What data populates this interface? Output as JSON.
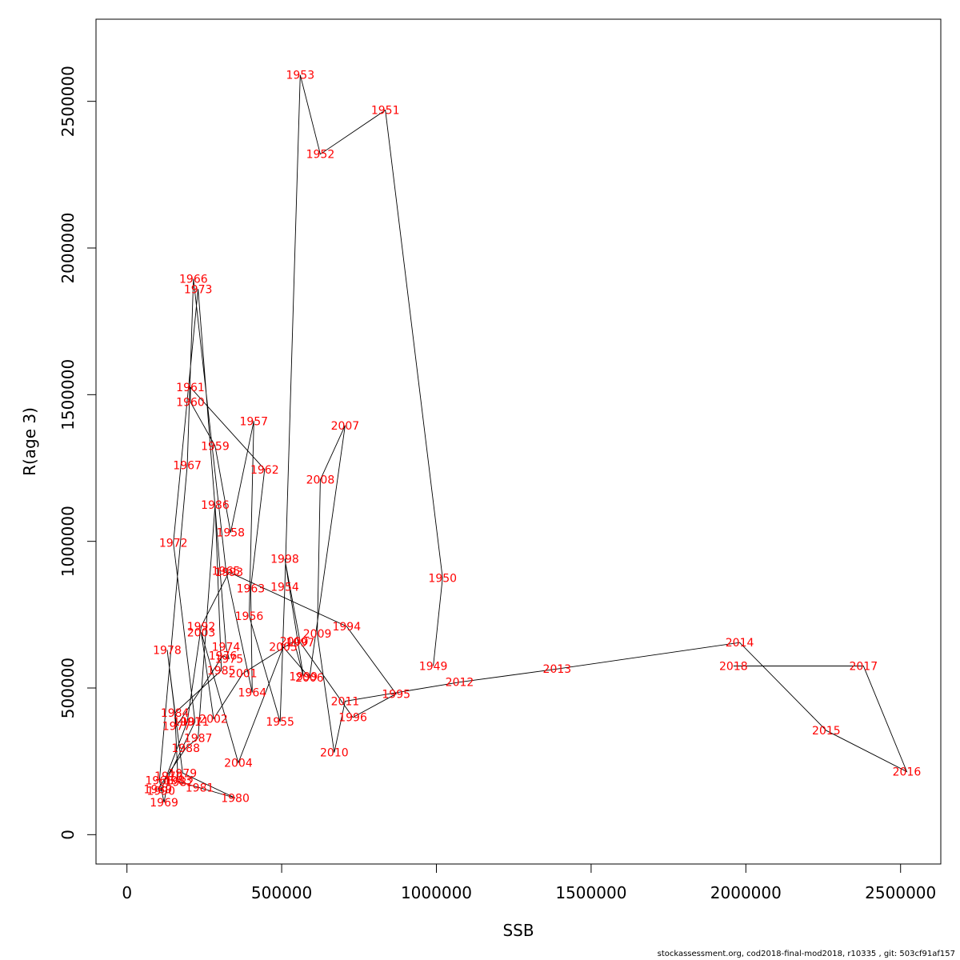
{
  "chart_data": {
    "type": "line",
    "xlabel": "SSB",
    "ylabel": "R(age 3)",
    "xlim": [
      -100000,
      2630000
    ],
    "ylim": [
      -100000,
      2780000
    ],
    "xticks": [
      0,
      500000,
      1000000,
      1500000,
      2000000,
      2500000
    ],
    "xtick_labels": [
      "0",
      "500000",
      "1000000",
      "1500000",
      "2000000",
      "2500000"
    ],
    "yticks": [
      0,
      500000,
      1000000,
      1500000,
      2000000,
      2500000
    ],
    "ytick_labels": [
      "0",
      "500000",
      "1000000",
      "1500000",
      "2000000",
      "2500000"
    ],
    "line_color": "#000000",
    "label_color": "#ff0000",
    "points": [
      {
        "label": "1949",
        "x": 990000,
        "y": 575000
      },
      {
        "label": "1950",
        "x": 1020000,
        "y": 875000
      },
      {
        "label": "1951",
        "x": 835000,
        "y": 2470000
      },
      {
        "label": "1952",
        "x": 625000,
        "y": 2320000
      },
      {
        "label": "1953",
        "x": 560000,
        "y": 2590000
      },
      {
        "label": "1954",
        "x": 510000,
        "y": 845000
      },
      {
        "label": "1955",
        "x": 495000,
        "y": 385000
      },
      {
        "label": "1956",
        "x": 395000,
        "y": 745000
      },
      {
        "label": "1957",
        "x": 410000,
        "y": 1410000
      },
      {
        "label": "1958",
        "x": 335000,
        "y": 1030000
      },
      {
        "label": "1959",
        "x": 285000,
        "y": 1325000
      },
      {
        "label": "1960",
        "x": 205000,
        "y": 1475000
      },
      {
        "label": "1961",
        "x": 205000,
        "y": 1525000
      },
      {
        "label": "1962",
        "x": 445000,
        "y": 1245000
      },
      {
        "label": "1963",
        "x": 400000,
        "y": 840000
      },
      {
        "label": "1964",
        "x": 405000,
        "y": 485000
      },
      {
        "label": "1965",
        "x": 320000,
        "y": 900000
      },
      {
        "label": "1966",
        "x": 215000,
        "y": 1895000
      },
      {
        "label": "1967",
        "x": 195000,
        "y": 1260000
      },
      {
        "label": "1968",
        "x": 105000,
        "y": 185000
      },
      {
        "label": "1969",
        "x": 120000,
        "y": 110000
      },
      {
        "label": "1970",
        "x": 135000,
        "y": 200000
      },
      {
        "label": "1971",
        "x": 220000,
        "y": 385000
      },
      {
        "label": "1972",
        "x": 150000,
        "y": 995000
      },
      {
        "label": "1973",
        "x": 230000,
        "y": 1860000
      },
      {
        "label": "1974",
        "x": 320000,
        "y": 640000
      },
      {
        "label": "1975",
        "x": 330000,
        "y": 600000
      },
      {
        "label": "1976",
        "x": 310000,
        "y": 610000
      },
      {
        "label": "1977",
        "x": 160000,
        "y": 370000
      },
      {
        "label": "1978",
        "x": 130000,
        "y": 630000
      },
      {
        "label": "1979",
        "x": 180000,
        "y": 210000
      },
      {
        "label": "1980",
        "x": 350000,
        "y": 125000
      },
      {
        "label": "1981",
        "x": 235000,
        "y": 160000
      },
      {
        "label": "1982",
        "x": 170000,
        "y": 180000
      },
      {
        "label": "1983",
        "x": 165000,
        "y": 185000
      },
      {
        "label": "1984",
        "x": 155000,
        "y": 415000
      },
      {
        "label": "1985",
        "x": 305000,
        "y": 560000
      },
      {
        "label": "1986",
        "x": 285000,
        "y": 1125000
      },
      {
        "label": "1987",
        "x": 230000,
        "y": 330000
      },
      {
        "label": "1988",
        "x": 190000,
        "y": 295000
      },
      {
        "label": "1989",
        "x": 100000,
        "y": 155000
      },
      {
        "label": "1990",
        "x": 110000,
        "y": 150000
      },
      {
        "label": "1991",
        "x": 195000,
        "y": 385000
      },
      {
        "label": "1992",
        "x": 240000,
        "y": 710000
      },
      {
        "label": "1993",
        "x": 330000,
        "y": 895000
      },
      {
        "label": "1994",
        "x": 710000,
        "y": 710000
      },
      {
        "label": "1995",
        "x": 870000,
        "y": 480000
      },
      {
        "label": "1996",
        "x": 730000,
        "y": 400000
      },
      {
        "label": "1997",
        "x": 560000,
        "y": 655000
      },
      {
        "label": "1998",
        "x": 510000,
        "y": 940000
      },
      {
        "label": "1999",
        "x": 570000,
        "y": 540000
      },
      {
        "label": "2000",
        "x": 540000,
        "y": 660000
      },
      {
        "label": "2001",
        "x": 375000,
        "y": 550000
      },
      {
        "label": "2002",
        "x": 280000,
        "y": 395000
      },
      {
        "label": "2003",
        "x": 240000,
        "y": 690000
      },
      {
        "label": "2004",
        "x": 360000,
        "y": 245000
      },
      {
        "label": "2005",
        "x": 505000,
        "y": 640000
      },
      {
        "label": "2006",
        "x": 590000,
        "y": 535000
      },
      {
        "label": "2007",
        "x": 705000,
        "y": 1395000
      },
      {
        "label": "2008",
        "x": 625000,
        "y": 1210000
      },
      {
        "label": "2009",
        "x": 615000,
        "y": 685000
      },
      {
        "label": "2010",
        "x": 670000,
        "y": 280000
      },
      {
        "label": "2011",
        "x": 705000,
        "y": 455000
      },
      {
        "label": "2012",
        "x": 1075000,
        "y": 520000
      },
      {
        "label": "2013",
        "x": 1390000,
        "y": 565000
      },
      {
        "label": "2014",
        "x": 1980000,
        "y": 655000
      },
      {
        "label": "2015",
        "x": 2260000,
        "y": 355000
      },
      {
        "label": "2016",
        "x": 2520000,
        "y": 215000
      },
      {
        "label": "2017",
        "x": 2380000,
        "y": 575000
      },
      {
        "label": "2018",
        "x": 1960000,
        "y": 575000
      }
    ]
  },
  "footer": "stockassessment.org, cod2018-final-mod2018, r10335 , git: 503cf91af157"
}
